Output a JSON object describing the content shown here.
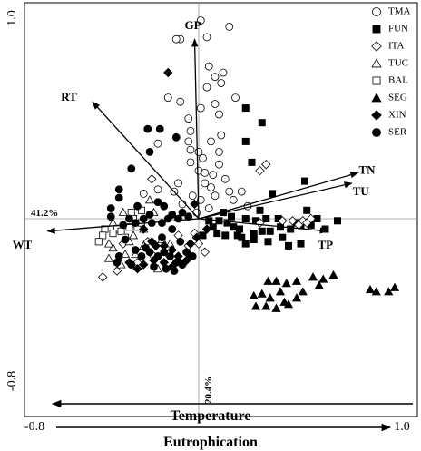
{
  "chart_data": {
    "type": "scatter",
    "subtype": "PCA biplot",
    "x_ticks": [
      "-0.8",
      "1.0"
    ],
    "y_ticks": [
      "1.0",
      "-0.8"
    ],
    "xlim": [
      -0.8,
      1.0
    ],
    "ylim": [
      -0.8,
      1.0
    ],
    "x_axis_percent": "41.2%",
    "y_axis_percent": "20.4%",
    "bottom_labels": {
      "left_arrow": "Temperature",
      "right_arrow": "Eutrophication"
    },
    "legend_position": "top-right",
    "legend": [
      {
        "name": "TMA",
        "marker": "circle-open"
      },
      {
        "name": "FUN",
        "marker": "square-filled"
      },
      {
        "name": "ITA",
        "marker": "diamond-open"
      },
      {
        "name": "TUC",
        "marker": "triangle-open"
      },
      {
        "name": "BAL",
        "marker": "square-open"
      },
      {
        "name": "SEG",
        "marker": "triangle-filled"
      },
      {
        "name": "XIN",
        "marker": "diamond-filled"
      },
      {
        "name": "SER",
        "marker": "circle-filled"
      }
    ],
    "vectors": [
      {
        "name": "GP",
        "x": -0.02,
        "y": 0.86
      },
      {
        "name": "RT",
        "x": -0.52,
        "y": 0.56
      },
      {
        "name": "TN",
        "x": 0.78,
        "y": 0.22
      },
      {
        "name": "TU",
        "x": 0.75,
        "y": 0.17
      },
      {
        "name": "TP",
        "x": 0.63,
        "y": -0.06
      },
      {
        "name": "WT",
        "x": -0.74,
        "y": -0.06
      }
    ],
    "series": [
      {
        "name": "TMA",
        "points": [
          [
            0.01,
            0.95
          ],
          [
            0.15,
            0.92
          ],
          [
            0.04,
            0.87
          ],
          [
            -0.09,
            0.86
          ],
          [
            -0.11,
            0.86
          ],
          [
            0.05,
            0.73
          ],
          [
            0.12,
            0.7
          ],
          [
            0.08,
            0.68
          ],
          [
            0.04,
            0.63
          ],
          [
            0.11,
            0.65
          ],
          [
            -0.15,
            0.58
          ],
          [
            -0.09,
            0.56
          ],
          [
            0.08,
            0.55
          ],
          [
            0.01,
            0.53
          ],
          [
            0.18,
            0.58
          ],
          [
            -0.05,
            0.48
          ],
          [
            0.1,
            0.5
          ],
          [
            -0.04,
            0.42
          ],
          [
            0.11,
            0.4
          ],
          [
            -0.05,
            0.37
          ],
          [
            -0.04,
            0.33
          ],
          [
            0.06,
            0.37
          ],
          [
            -0.2,
            0.36
          ],
          [
            0.0,
            0.32
          ],
          [
            0.02,
            0.29
          ],
          [
            0.1,
            0.32
          ],
          [
            -0.04,
            0.27
          ],
          [
            0.0,
            0.23
          ],
          [
            0.03,
            0.22
          ],
          [
            0.07,
            0.21
          ],
          [
            0.1,
            0.26
          ],
          [
            0.13,
            0.19
          ],
          [
            0.03,
            0.17
          ],
          [
            0.06,
            0.15
          ],
          [
            -0.03,
            0.11
          ],
          [
            0.01,
            0.09
          ],
          [
            -0.12,
            0.13
          ],
          [
            -0.27,
            0.12
          ],
          [
            -0.2,
            0.14
          ],
          [
            -0.08,
            0.07
          ],
          [
            0.05,
            0.05
          ],
          [
            -0.01,
            0.03
          ],
          [
            0.08,
            0.11
          ],
          [
            0.15,
            0.13
          ],
          [
            0.21,
            0.13
          ],
          [
            0.24,
            0.06
          ],
          [
            -0.1,
            0.17
          ],
          [
            0.17,
            0.09
          ]
        ]
      },
      {
        "name": "FUN",
        "points": [
          [
            0.23,
            0.53
          ],
          [
            0.23,
            0.37
          ],
          [
            0.31,
            0.46
          ],
          [
            0.26,
            0.27
          ],
          [
            0.52,
            0.18
          ],
          [
            0.36,
            0.12
          ],
          [
            0.23,
            0.0
          ],
          [
            0.28,
            -0.01
          ],
          [
            0.33,
            0.0
          ],
          [
            0.39,
            0.0
          ],
          [
            0.48,
            -0.02
          ],
          [
            0.62,
            -0.05
          ],
          [
            0.68,
            -0.01
          ],
          [
            0.2,
            -0.05
          ],
          [
            0.27,
            -0.07
          ],
          [
            0.31,
            -0.06
          ],
          [
            0.35,
            -0.06
          ],
          [
            0.4,
            -0.04
          ],
          [
            0.45,
            -0.05
          ],
          [
            0.5,
            -0.03
          ],
          [
            0.55,
            -0.03
          ],
          [
            0.21,
            -0.09
          ],
          [
            0.27,
            -0.1
          ],
          [
            0.34,
            -0.11
          ],
          [
            0.44,
            -0.13
          ],
          [
            0.5,
            -0.12
          ],
          [
            0.05,
            -0.01
          ],
          [
            0.1,
            -0.01
          ],
          [
            0.14,
            -0.02
          ],
          [
            0.09,
            -0.07
          ],
          [
            0.13,
            -0.08
          ],
          [
            0.17,
            -0.04
          ],
          [
            0.02,
            -0.08
          ],
          [
            0.07,
            -0.04
          ],
          [
            0.58,
            0.0
          ],
          [
            0.16,
            0.01
          ],
          [
            0.12,
            0.03
          ],
          [
            0.3,
            0.04
          ],
          [
            0.53,
            0.04
          ],
          [
            0.19,
            -0.08
          ],
          [
            0.23,
            -0.12
          ],
          [
            0.41,
            -0.09
          ]
        ]
      },
      {
        "name": "ITA",
        "points": [
          [
            0.33,
            0.26
          ],
          [
            0.3,
            0.23
          ],
          [
            -0.23,
            0.19
          ],
          [
            0.3,
            -0.02
          ],
          [
            0.46,
            -0.01
          ],
          [
            0.49,
            -0.03
          ],
          [
            0.51,
            -0.01
          ],
          [
            0.53,
            -0.02
          ],
          [
            0.55,
            0.0
          ],
          [
            0.41,
            -0.01
          ],
          [
            -0.1,
            -0.08
          ],
          [
            -0.15,
            -0.17
          ],
          [
            -0.22,
            -0.18
          ],
          [
            -0.3,
            -0.21
          ],
          [
            -0.4,
            -0.25
          ],
          [
            -0.47,
            -0.28
          ],
          [
            -0.05,
            -0.13
          ],
          [
            -0.02,
            -0.07
          ],
          [
            0.0,
            -0.12
          ],
          [
            0.03,
            -0.16
          ],
          [
            -0.37,
            -0.12
          ],
          [
            -0.25,
            -0.11
          ]
        ]
      },
      {
        "name": "TUC",
        "points": [
          [
            -0.24,
            0.09
          ],
          [
            -0.22,
            0.03
          ],
          [
            -0.42,
            -0.02
          ],
          [
            -0.37,
            0.03
          ],
          [
            -0.34,
            -0.11
          ],
          [
            -0.42,
            -0.14
          ],
          [
            -0.44,
            -0.12
          ],
          [
            -0.44,
            -0.19
          ],
          [
            -0.36,
            -0.17
          ],
          [
            -0.31,
            -0.17
          ],
          [
            -0.27,
            -0.13
          ],
          [
            -0.18,
            -0.1
          ],
          [
            -0.32,
            -0.08
          ],
          [
            -0.14,
            -0.12
          ],
          [
            -0.38,
            -0.22
          ],
          [
            -0.2,
            -0.24
          ],
          [
            -0.27,
            -0.05
          ]
        ]
      },
      {
        "name": "BAL",
        "points": [
          [
            -0.33,
            0.03
          ],
          [
            -0.32,
            0.0
          ],
          [
            -0.3,
            -0.04
          ],
          [
            -0.28,
            -0.02
          ],
          [
            -0.46,
            -0.05
          ],
          [
            -0.47,
            -0.08
          ],
          [
            -0.49,
            -0.11
          ],
          [
            -0.4,
            -0.05
          ],
          [
            -0.42,
            -0.07
          ],
          [
            -0.38,
            -0.06
          ],
          [
            -0.28,
            0.04
          ],
          [
            -0.34,
            -0.04
          ],
          [
            -0.36,
            -0.09
          ]
        ]
      },
      {
        "name": "SEG",
        "points": [
          [
            0.34,
            -0.3
          ],
          [
            0.38,
            -0.3
          ],
          [
            0.43,
            -0.31
          ],
          [
            0.48,
            -0.3
          ],
          [
            0.56,
            -0.28
          ],
          [
            0.61,
            -0.29
          ],
          [
            0.66,
            -0.27
          ],
          [
            0.84,
            -0.34
          ],
          [
            0.87,
            -0.35
          ],
          [
            0.93,
            -0.35
          ],
          [
            0.96,
            -0.33
          ],
          [
            0.27,
            -0.37
          ],
          [
            0.31,
            -0.36
          ],
          [
            0.35,
            -0.38
          ],
          [
            0.4,
            -0.35
          ],
          [
            0.44,
            -0.41
          ],
          [
            0.51,
            -0.35
          ],
          [
            0.33,
            -0.42
          ],
          [
            0.38,
            -0.43
          ],
          [
            0.42,
            -0.4
          ],
          [
            0.48,
            -0.38
          ],
          [
            0.28,
            -0.42
          ],
          [
            0.59,
            -0.32
          ]
        ]
      },
      {
        "name": "XIN",
        "points": [
          [
            -0.15,
            0.7
          ],
          [
            -0.02,
            0.07
          ],
          [
            -0.27,
            -0.05
          ],
          [
            -0.23,
            -0.11
          ],
          [
            -0.21,
            -0.13
          ],
          [
            -0.17,
            -0.13
          ],
          [
            -0.13,
            -0.15
          ],
          [
            -0.1,
            -0.18
          ],
          [
            -0.06,
            -0.2
          ],
          [
            -0.05,
            -0.17
          ],
          [
            -0.04,
            -0.12
          ],
          [
            -0.01,
            -0.09
          ],
          [
            -0.22,
            -0.2
          ],
          [
            -0.27,
            -0.22
          ],
          [
            -0.34,
            -0.21
          ],
          [
            -0.3,
            -0.24
          ],
          [
            -0.13,
            -0.23
          ],
          [
            -0.09,
            -0.21
          ],
          [
            -0.17,
            -0.21
          ],
          [
            0.04,
            -0.05
          ]
        ]
      },
      {
        "name": "SER",
        "points": [
          [
            -0.25,
            0.43
          ],
          [
            -0.19,
            0.43
          ],
          [
            -0.24,
            0.32
          ],
          [
            -0.11,
            0.39
          ],
          [
            -0.33,
            0.24
          ],
          [
            -0.39,
            0.14
          ],
          [
            -0.39,
            0.1
          ],
          [
            -0.43,
            0.05
          ],
          [
            -0.43,
            0.01
          ],
          [
            -0.3,
            0.06
          ],
          [
            -0.2,
            0.08
          ],
          [
            -0.17,
            0.06
          ],
          [
            -0.13,
            0.02
          ],
          [
            -0.08,
            0.03
          ],
          [
            -0.05,
            0.01
          ],
          [
            -0.1,
            0.0
          ],
          [
            -0.15,
            0.0
          ],
          [
            -0.18,
            -0.02
          ],
          [
            -0.23,
            -0.02
          ],
          [
            -0.27,
            0.0
          ],
          [
            -0.34,
            0.0
          ],
          [
            -0.36,
            -0.1
          ],
          [
            -0.31,
            -0.15
          ],
          [
            -0.26,
            -0.14
          ],
          [
            -0.24,
            -0.16
          ],
          [
            -0.2,
            -0.18
          ],
          [
            -0.17,
            -0.16
          ],
          [
            -0.14,
            -0.18
          ],
          [
            -0.11,
            -0.21
          ],
          [
            -0.08,
            -0.22
          ],
          [
            -0.12,
            -0.25
          ],
          [
            -0.16,
            -0.24
          ],
          [
            -0.28,
            -0.18
          ],
          [
            -0.39,
            -0.18
          ],
          [
            -0.4,
            -0.21
          ],
          [
            -0.33,
            -0.22
          ],
          [
            -0.22,
            -0.23
          ],
          [
            -0.03,
            -0.18
          ],
          [
            -0.06,
            -0.16
          ],
          [
            -0.18,
            -0.09
          ],
          [
            -0.09,
            -0.11
          ],
          [
            -0.31,
            -0.02
          ],
          [
            -0.37,
            -0.03
          ],
          [
            -0.24,
            0.02
          ],
          [
            -0.13,
            -0.05
          ]
        ]
      }
    ]
  }
}
